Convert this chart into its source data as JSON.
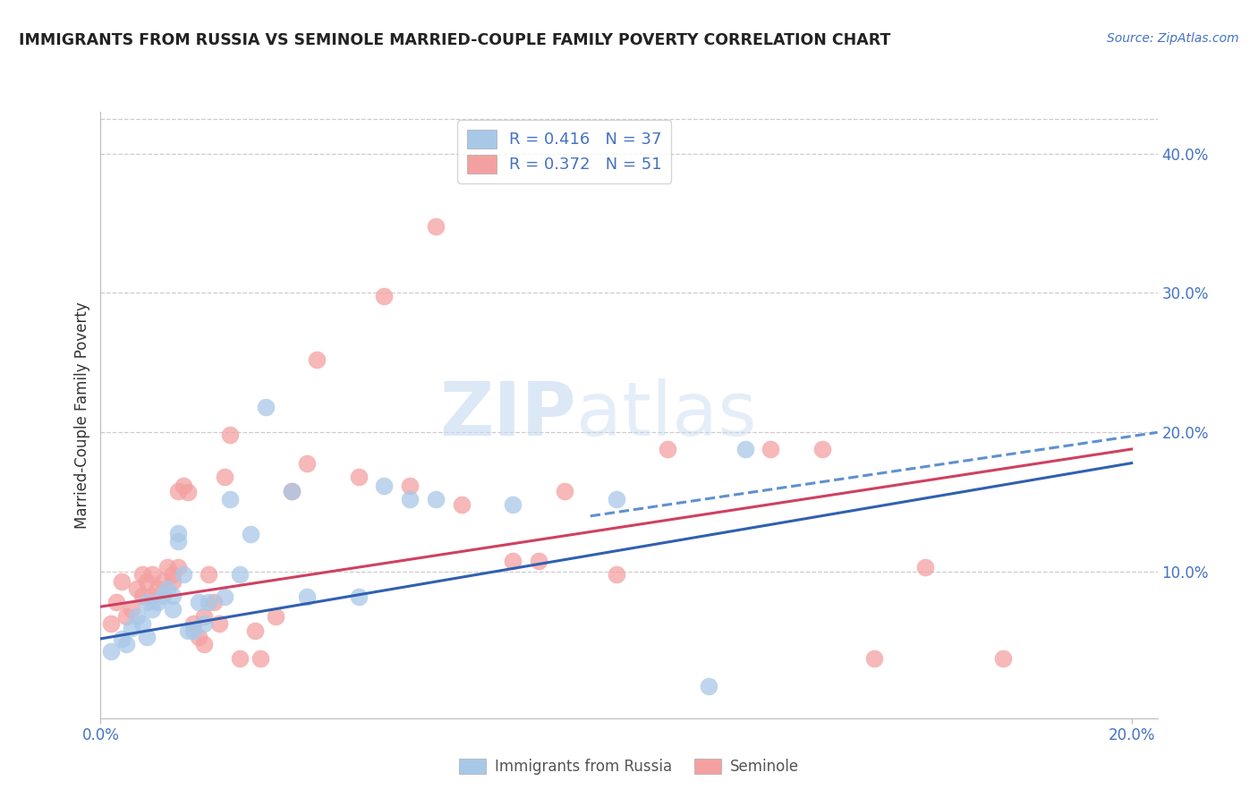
{
  "title": "IMMIGRANTS FROM RUSSIA VS SEMINOLE MARRIED-COUPLE FAMILY POVERTY CORRELATION CHART",
  "source": "Source: ZipAtlas.com",
  "ylabel_left": "Married-Couple Family Poverty",
  "legend1_label": "Immigrants from Russia",
  "legend2_label": "Seminole",
  "r1": 0.416,
  "n1": 37,
  "r2": 0.372,
  "n2": 51,
  "xlim": [
    0.0,
    0.205
  ],
  "ylim": [
    -0.005,
    0.43
  ],
  "yticks_right": [
    0.1,
    0.2,
    0.3,
    0.4
  ],
  "ytick_labels_right": [
    "10.0%",
    "20.0%",
    "30.0%",
    "40.0%"
  ],
  "xticks": [
    0.0,
    0.2
  ],
  "xtick_labels": [
    "0.0%",
    "20.0%"
  ],
  "color_blue": "#a8c8e8",
  "color_pink": "#f4a0a0",
  "color_axis": "#4472c4",
  "color_axis_label": "#333333",
  "background": "#ffffff",
  "watermark_zip": "ZIP",
  "watermark_atlas": "atlas",
  "blue_points": [
    [
      0.002,
      0.043
    ],
    [
      0.004,
      0.052
    ],
    [
      0.005,
      0.048
    ],
    [
      0.006,
      0.06
    ],
    [
      0.007,
      0.068
    ],
    [
      0.008,
      0.063
    ],
    [
      0.009,
      0.053
    ],
    [
      0.009,
      0.078
    ],
    [
      0.01,
      0.073
    ],
    [
      0.011,
      0.078
    ],
    [
      0.012,
      0.083
    ],
    [
      0.013,
      0.088
    ],
    [
      0.014,
      0.083
    ],
    [
      0.014,
      0.073
    ],
    [
      0.015,
      0.128
    ],
    [
      0.015,
      0.122
    ],
    [
      0.016,
      0.098
    ],
    [
      0.017,
      0.058
    ],
    [
      0.018,
      0.058
    ],
    [
      0.019,
      0.078
    ],
    [
      0.02,
      0.063
    ],
    [
      0.021,
      0.078
    ],
    [
      0.024,
      0.082
    ],
    [
      0.025,
      0.152
    ],
    [
      0.027,
      0.098
    ],
    [
      0.029,
      0.127
    ],
    [
      0.032,
      0.218
    ],
    [
      0.037,
      0.158
    ],
    [
      0.04,
      0.082
    ],
    [
      0.05,
      0.082
    ],
    [
      0.055,
      0.162
    ],
    [
      0.06,
      0.152
    ],
    [
      0.065,
      0.152
    ],
    [
      0.08,
      0.148
    ],
    [
      0.1,
      0.152
    ],
    [
      0.125,
      0.188
    ],
    [
      0.118,
      0.018
    ]
  ],
  "pink_points": [
    [
      0.002,
      0.063
    ],
    [
      0.003,
      0.078
    ],
    [
      0.004,
      0.093
    ],
    [
      0.005,
      0.068
    ],
    [
      0.006,
      0.073
    ],
    [
      0.007,
      0.088
    ],
    [
      0.008,
      0.098
    ],
    [
      0.008,
      0.083
    ],
    [
      0.009,
      0.093
    ],
    [
      0.01,
      0.083
    ],
    [
      0.01,
      0.098
    ],
    [
      0.011,
      0.088
    ],
    [
      0.012,
      0.093
    ],
    [
      0.013,
      0.103
    ],
    [
      0.014,
      0.098
    ],
    [
      0.014,
      0.093
    ],
    [
      0.015,
      0.158
    ],
    [
      0.015,
      0.103
    ],
    [
      0.016,
      0.162
    ],
    [
      0.017,
      0.157
    ],
    [
      0.018,
      0.063
    ],
    [
      0.019,
      0.053
    ],
    [
      0.02,
      0.068
    ],
    [
      0.02,
      0.048
    ],
    [
      0.021,
      0.098
    ],
    [
      0.022,
      0.078
    ],
    [
      0.023,
      0.063
    ],
    [
      0.024,
      0.168
    ],
    [
      0.025,
      0.198
    ],
    [
      0.027,
      0.038
    ],
    [
      0.03,
      0.058
    ],
    [
      0.031,
      0.038
    ],
    [
      0.034,
      0.068
    ],
    [
      0.037,
      0.158
    ],
    [
      0.04,
      0.178
    ],
    [
      0.042,
      0.252
    ],
    [
      0.05,
      0.168
    ],
    [
      0.055,
      0.298
    ],
    [
      0.06,
      0.162
    ],
    [
      0.065,
      0.348
    ],
    [
      0.07,
      0.148
    ],
    [
      0.08,
      0.108
    ],
    [
      0.085,
      0.108
    ],
    [
      0.09,
      0.158
    ],
    [
      0.1,
      0.098
    ],
    [
      0.11,
      0.188
    ],
    [
      0.13,
      0.188
    ],
    [
      0.14,
      0.188
    ],
    [
      0.15,
      0.038
    ],
    [
      0.16,
      0.103
    ],
    [
      0.175,
      0.038
    ]
  ],
  "blue_line": {
    "x0": 0.0,
    "y0": 0.052,
    "x1": 0.2,
    "y1": 0.178
  },
  "pink_line": {
    "x0": 0.0,
    "y0": 0.075,
    "x1": 0.2,
    "y1": 0.188
  },
  "blue_dashed_line": {
    "x0": 0.095,
    "y0": 0.14,
    "x1": 0.205,
    "y1": 0.2
  }
}
